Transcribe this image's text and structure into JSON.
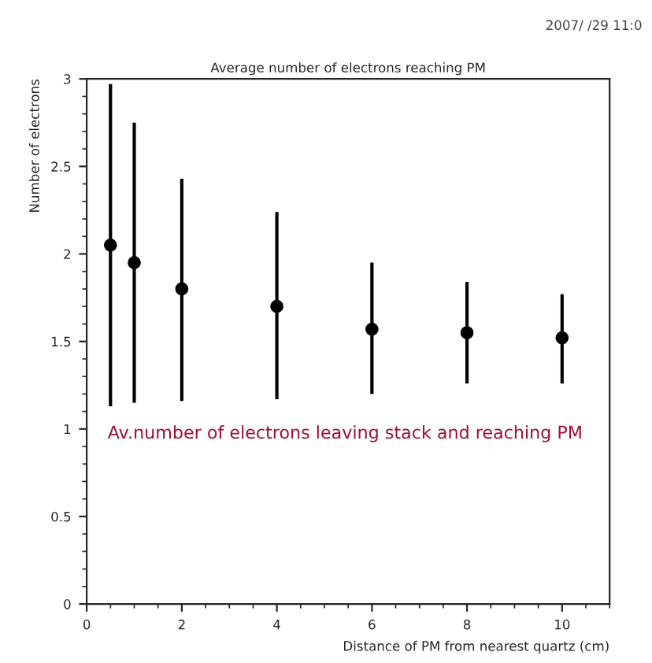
{
  "chart_data": {
    "type": "scatter",
    "title": "Average number of electrons reaching PM",
    "xlabel": "Distance of PM from nearest quartz (cm)",
    "ylabel": "Number of electrons",
    "annotations": [
      "2007/ /29 11:0",
      "Av.number of electrons leaving stack and reaching PM"
    ],
    "x": [
      0.5,
      1,
      2,
      4,
      6,
      8,
      10
    ],
    "values": [
      2.05,
      1.95,
      1.8,
      1.7,
      1.57,
      1.55,
      1.52
    ],
    "errors": [
      [
        1.13,
        2.97
      ],
      [
        1.15,
        2.75
      ],
      [
        1.16,
        2.43
      ],
      [
        1.17,
        2.24
      ],
      [
        1.2,
        1.95
      ],
      [
        1.26,
        1.84
      ],
      [
        1.26,
        1.77
      ]
    ],
    "color": "#000000",
    "marker": "circle",
    "xlim": [
      0,
      11
    ],
    "ylim": [
      0,
      3
    ],
    "xticks": [
      0,
      2,
      4,
      6,
      8,
      10
    ],
    "yticks": [
      0,
      0.5,
      1,
      1.5,
      2,
      2.5,
      3
    ],
    "grid": false,
    "legend": false
  }
}
